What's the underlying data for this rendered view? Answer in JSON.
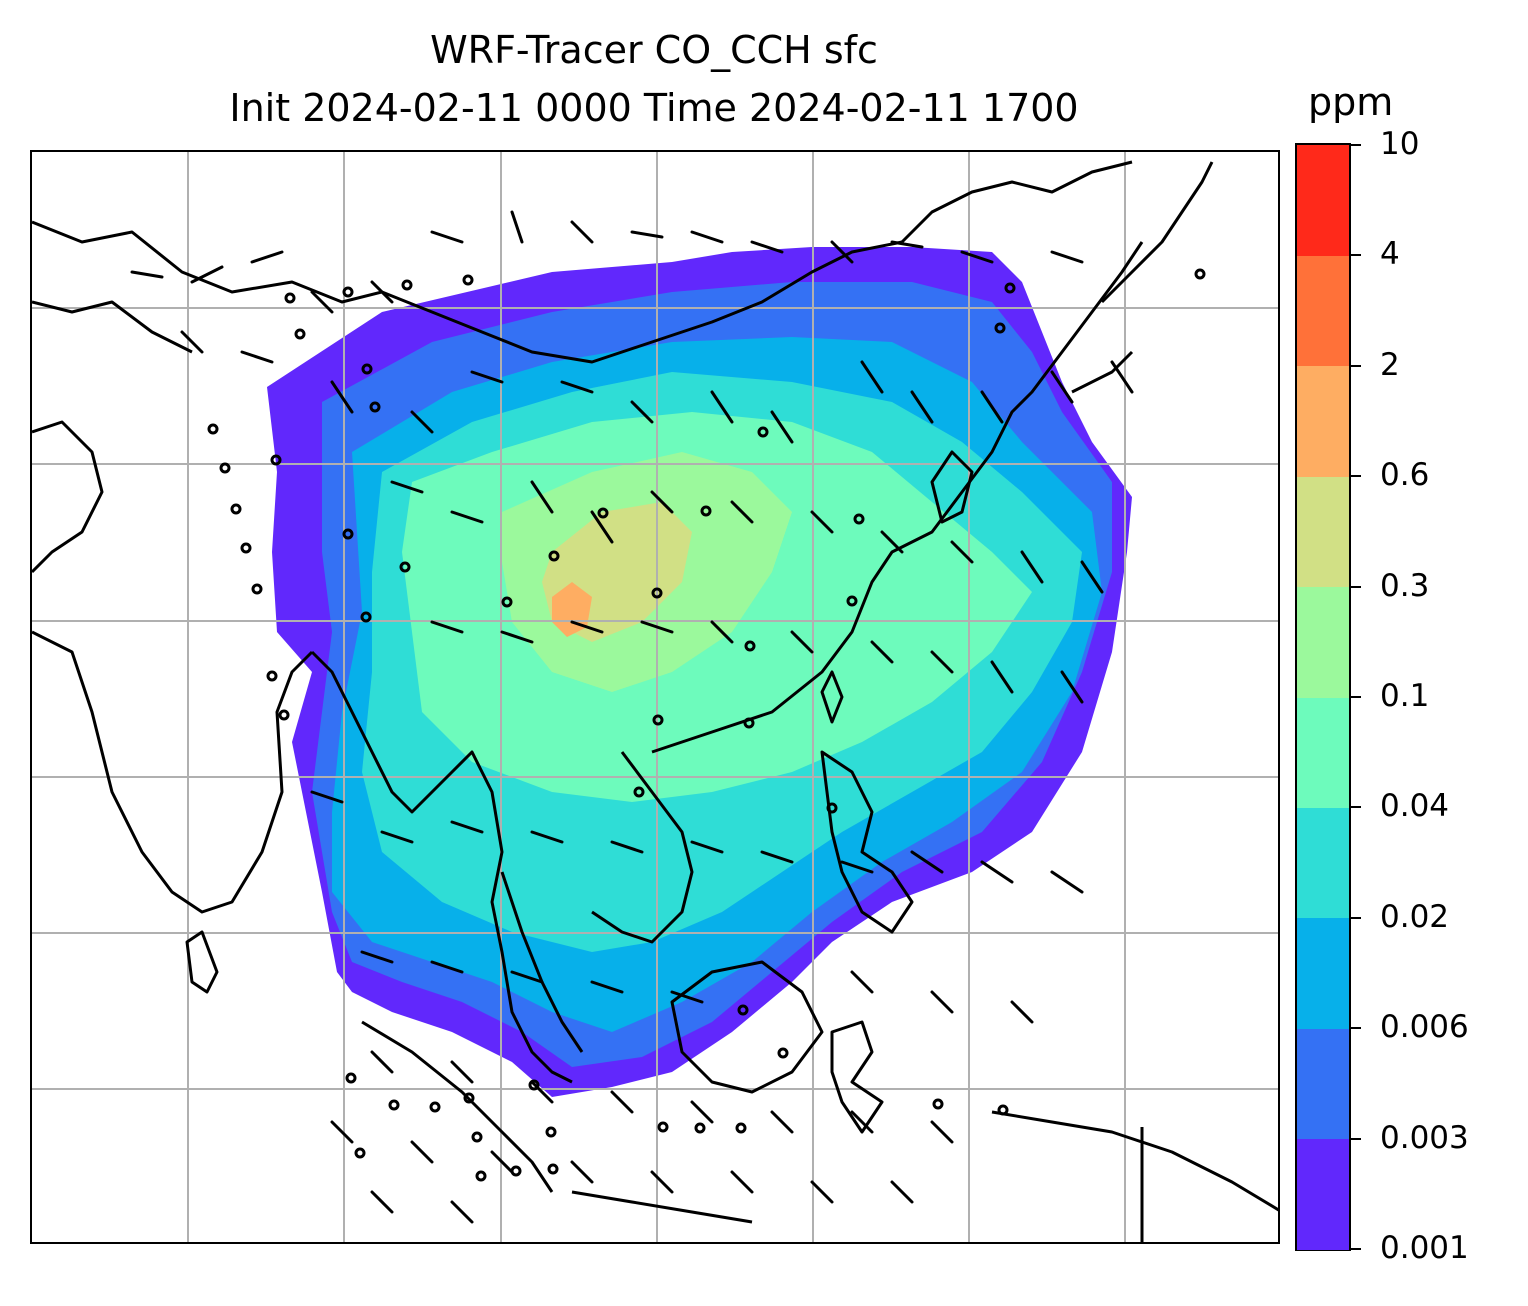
{
  "title": {
    "line1": "WRF-Tracer CO_CCH sfc",
    "line2": "Init 2024-02-11 0000 Time 2024-02-11 1700"
  },
  "colorbar": {
    "unit": "ppm",
    "levels": [
      "0.001",
      "0.003",
      "0.006",
      "0.02",
      "0.04",
      "0.1",
      "0.3",
      "0.6",
      "2",
      "4",
      "10"
    ],
    "colors": [
      "#6128fc",
      "#3471f4",
      "#07b0ea",
      "#2fddd6",
      "#6dfbbc",
      "#9bf99c",
      "#d1e085",
      "#fead62",
      "#ff7139",
      "#ff291a"
    ]
  },
  "map": {
    "projection": "lat-lon with gridlines",
    "gridline_color": "#b0b0b0",
    "coastline_color": "#000000",
    "features": [
      "coastlines",
      "country borders",
      "wind barbs",
      "CO_CCH tracer concentration filled contours"
    ],
    "wind_barb_color": "#000000"
  },
  "chart_data": {
    "type": "heatmap",
    "title": "WRF-Tracer CO_CCH sfc",
    "subtitle": "Init 2024-02-11 0000 Time 2024-02-11 1700",
    "colorbar_label": "ppm",
    "colorbar_ticks": [
      "0.001",
      "0.003",
      "0.006",
      "0.02",
      "0.04",
      "0.1",
      "0.3",
      "0.6",
      "2",
      "4",
      "10"
    ],
    "grid": true
  }
}
